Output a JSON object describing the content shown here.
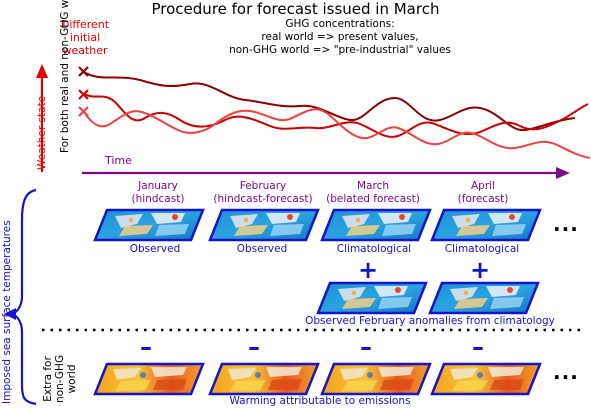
{
  "title": "Procedure for forecast issued in March",
  "initial_weather_note": [
    "Different",
    "initial",
    "weather"
  ],
  "ghg_note": [
    "GHG concentrations:",
    "real world => present values,",
    "non-GHG world => \"pre-industrial\" values"
  ],
  "axes": {
    "y_label": "Weather state",
    "x_label": "Time",
    "left_label": "For both real and non-GHG worlds",
    "sst_label": "Imposed sea surface temperatures",
    "extra_label": [
      "Extra for",
      "non-GHG",
      "world"
    ]
  },
  "months": [
    {
      "name": "January",
      "kind": "(hindcast)",
      "sst": "Observed"
    },
    {
      "name": "February",
      "kind": "(hindcast-forecast)",
      "sst": "Observed"
    },
    {
      "name": "March",
      "kind": "(belated forecast)",
      "sst": "Climatological"
    },
    {
      "name": "April",
      "kind": "(forecast)",
      "sst": "Climatological"
    }
  ],
  "ellipsis": "...",
  "plus": "+",
  "minus": "–",
  "anomaly_note": "Observed February anomalies from climatology",
  "warming_note": "Warming attributable to emissions",
  "colors": {
    "red": "#e00000",
    "purple": "#7a0a8a",
    "blue": "#1414c8",
    "curve_dark": "#8b0000",
    "curve_mid": "#c80000",
    "curve_light": "#f04040"
  },
  "icons": [
    "x-marker-icon",
    "sst-map-icon"
  ]
}
